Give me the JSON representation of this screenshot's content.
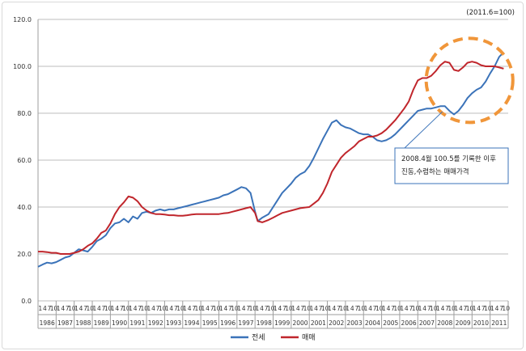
{
  "chart_data": {
    "type": "line",
    "title": "",
    "base_note": "(2011.6=100)",
    "xlabel": "",
    "ylabel": "",
    "ylim": [
      0,
      120
    ],
    "yticks": [
      "0.0",
      "20.0",
      "40.0",
      "60.0",
      "80.0",
      "100.0",
      "120.0"
    ],
    "grid": true,
    "legend_position": "bottom",
    "years": [
      "1986",
      "1987",
      "1988",
      "1989",
      "1990",
      "1991",
      "1992",
      "1993",
      "1994",
      "1995",
      "1996",
      "1997",
      "1998",
      "1999",
      "2000",
      "2001",
      "2002",
      "2003",
      "2004",
      "2005",
      "2006",
      "2007",
      "2008",
      "2009",
      "2010",
      "2011"
    ],
    "month_ticks": [
      "1",
      "4",
      "7",
      "10"
    ],
    "colors": {
      "jeonse": "#3b73b9",
      "maemae": "#c0262c",
      "highlight": "#f0963a"
    },
    "series": [
      {
        "name": "전세",
        "key": "jeonse",
        "points": [
          [
            1986.0,
            14.5
          ],
          [
            1986.25,
            15.5
          ],
          [
            1986.5,
            16.3
          ],
          [
            1986.75,
            16.0
          ],
          [
            1987.0,
            16.5
          ],
          [
            1987.25,
            17.5
          ],
          [
            1987.5,
            18.5
          ],
          [
            1987.75,
            19.0
          ],
          [
            1988.0,
            20.5
          ],
          [
            1988.25,
            22.0
          ],
          [
            1988.5,
            21.5
          ],
          [
            1988.75,
            21.0
          ],
          [
            1989.0,
            23.0
          ],
          [
            1989.25,
            25.5
          ],
          [
            1989.5,
            26.5
          ],
          [
            1989.75,
            28.0
          ],
          [
            1990.0,
            31.0
          ],
          [
            1990.25,
            33.0
          ],
          [
            1990.5,
            33.5
          ],
          [
            1990.75,
            35.0
          ],
          [
            1991.0,
            33.5
          ],
          [
            1991.25,
            36.0
          ],
          [
            1991.5,
            35.0
          ],
          [
            1991.75,
            37.5
          ],
          [
            1992.0,
            38.0
          ],
          [
            1992.25,
            37.5
          ],
          [
            1992.5,
            38.5
          ],
          [
            1992.75,
            39.0
          ],
          [
            1993.0,
            38.5
          ],
          [
            1993.25,
            39.0
          ],
          [
            1993.5,
            39.0
          ],
          [
            1993.75,
            39.5
          ],
          [
            1994.0,
            40.0
          ],
          [
            1994.25,
            40.5
          ],
          [
            1994.5,
            41.0
          ],
          [
            1994.75,
            41.5
          ],
          [
            1995.0,
            42.0
          ],
          [
            1995.25,
            42.5
          ],
          [
            1995.5,
            43.0
          ],
          [
            1995.75,
            43.5
          ],
          [
            1996.0,
            44.0
          ],
          [
            1996.25,
            45.0
          ],
          [
            1996.5,
            45.5
          ],
          [
            1996.75,
            46.5
          ],
          [
            1997.0,
            47.5
          ],
          [
            1997.25,
            48.5
          ],
          [
            1997.5,
            48.0
          ],
          [
            1997.75,
            46.0
          ],
          [
            1998.0,
            38.0
          ],
          [
            1998.15,
            34.0
          ],
          [
            1998.4,
            35.5
          ],
          [
            1998.75,
            37.0
          ],
          [
            1999.0,
            40.0
          ],
          [
            1999.25,
            43.0
          ],
          [
            1999.5,
            46.0
          ],
          [
            1999.75,
            48.0
          ],
          [
            2000.0,
            50.0
          ],
          [
            2000.25,
            52.5
          ],
          [
            2000.5,
            54.0
          ],
          [
            2000.75,
            55.0
          ],
          [
            2001.0,
            57.5
          ],
          [
            2001.25,
            61.0
          ],
          [
            2001.5,
            65.0
          ],
          [
            2001.75,
            69.0
          ],
          [
            2002.0,
            72.5
          ],
          [
            2002.25,
            76.0
          ],
          [
            2002.5,
            77.0
          ],
          [
            2002.75,
            75.0
          ],
          [
            2003.0,
            74.0
          ],
          [
            2003.25,
            73.5
          ],
          [
            2003.5,
            72.5
          ],
          [
            2003.75,
            71.5
          ],
          [
            2004.0,
            71.0
          ],
          [
            2004.25,
            71.0
          ],
          [
            2004.5,
            70.0
          ],
          [
            2004.75,
            68.5
          ],
          [
            2005.0,
            68.0
          ],
          [
            2005.25,
            68.5
          ],
          [
            2005.5,
            69.5
          ],
          [
            2005.75,
            71.0
          ],
          [
            2006.0,
            73.0
          ],
          [
            2006.25,
            75.0
          ],
          [
            2006.5,
            77.0
          ],
          [
            2006.75,
            79.0
          ],
          [
            2007.0,
            81.0
          ],
          [
            2007.25,
            81.5
          ],
          [
            2007.5,
            82.0
          ],
          [
            2007.75,
            82.0
          ],
          [
            2008.0,
            82.5
          ],
          [
            2008.25,
            83.0
          ],
          [
            2008.5,
            83.0
          ],
          [
            2008.75,
            81.0
          ],
          [
            2009.0,
            79.5
          ],
          [
            2009.25,
            81.0
          ],
          [
            2009.5,
            83.5
          ],
          [
            2009.75,
            86.5
          ],
          [
            2010.0,
            88.5
          ],
          [
            2010.25,
            90.0
          ],
          [
            2010.5,
            91.0
          ],
          [
            2010.75,
            93.5
          ],
          [
            2011.0,
            97.0
          ],
          [
            2011.25,
            100.0
          ],
          [
            2011.5,
            104.0
          ],
          [
            2011.75,
            106.0
          ]
        ]
      },
      {
        "name": "매매",
        "key": "maemae",
        "points": [
          [
            1986.0,
            21.0
          ],
          [
            1986.25,
            21.0
          ],
          [
            1986.5,
            20.8
          ],
          [
            1986.75,
            20.5
          ],
          [
            1987.0,
            20.5
          ],
          [
            1987.25,
            20.0
          ],
          [
            1987.5,
            20.0
          ],
          [
            1987.75,
            20.0
          ],
          [
            1988.0,
            20.5
          ],
          [
            1988.25,
            21.0
          ],
          [
            1988.5,
            22.0
          ],
          [
            1988.75,
            23.5
          ],
          [
            1989.0,
            24.5
          ],
          [
            1989.25,
            26.5
          ],
          [
            1989.5,
            29.0
          ],
          [
            1989.75,
            30.0
          ],
          [
            1990.0,
            33.0
          ],
          [
            1990.25,
            37.0
          ],
          [
            1990.5,
            40.0
          ],
          [
            1990.75,
            42.0
          ],
          [
            1991.0,
            44.5
          ],
          [
            1991.25,
            44.0
          ],
          [
            1991.5,
            42.5
          ],
          [
            1991.75,
            40.0
          ],
          [
            1992.0,
            38.5
          ],
          [
            1992.25,
            37.5
          ],
          [
            1992.5,
            37.0
          ],
          [
            1992.75,
            37.0
          ],
          [
            1993.0,
            36.8
          ],
          [
            1993.25,
            36.5
          ],
          [
            1993.5,
            36.5
          ],
          [
            1993.75,
            36.3
          ],
          [
            1994.0,
            36.3
          ],
          [
            1994.25,
            36.5
          ],
          [
            1994.5,
            36.8
          ],
          [
            1994.75,
            37.0
          ],
          [
            1995.0,
            37.0
          ],
          [
            1995.25,
            37.0
          ],
          [
            1995.5,
            37.0
          ],
          [
            1995.75,
            37.0
          ],
          [
            1996.0,
            37.0
          ],
          [
            1996.25,
            37.3
          ],
          [
            1996.5,
            37.5
          ],
          [
            1996.75,
            38.0
          ],
          [
            1997.0,
            38.5
          ],
          [
            1997.25,
            39.0
          ],
          [
            1997.5,
            39.5
          ],
          [
            1997.75,
            40.0
          ],
          [
            1998.0,
            37.5
          ],
          [
            1998.15,
            34.0
          ],
          [
            1998.4,
            33.5
          ],
          [
            1998.75,
            34.5
          ],
          [
            1999.0,
            35.5
          ],
          [
            1999.25,
            36.5
          ],
          [
            1999.5,
            37.5
          ],
          [
            1999.75,
            38.0
          ],
          [
            2000.0,
            38.5
          ],
          [
            2000.25,
            39.0
          ],
          [
            2000.5,
            39.5
          ],
          [
            2000.75,
            39.8
          ],
          [
            2001.0,
            40.0
          ],
          [
            2001.25,
            41.5
          ],
          [
            2001.5,
            43.0
          ],
          [
            2001.75,
            46.0
          ],
          [
            2002.0,
            50.0
          ],
          [
            2002.25,
            55.0
          ],
          [
            2002.5,
            58.0
          ],
          [
            2002.75,
            61.0
          ],
          [
            2003.0,
            63.0
          ],
          [
            2003.25,
            64.5
          ],
          [
            2003.5,
            66.0
          ],
          [
            2003.75,
            68.0
          ],
          [
            2004.0,
            69.0
          ],
          [
            2004.25,
            70.0
          ],
          [
            2004.5,
            70.0
          ],
          [
            2004.75,
            70.5
          ],
          [
            2005.0,
            71.5
          ],
          [
            2005.25,
            73.0
          ],
          [
            2005.5,
            75.0
          ],
          [
            2005.75,
            77.0
          ],
          [
            2006.0,
            79.5
          ],
          [
            2006.25,
            82.0
          ],
          [
            2006.5,
            85.0
          ],
          [
            2006.75,
            90.0
          ],
          [
            2007.0,
            94.0
          ],
          [
            2007.25,
            95.0
          ],
          [
            2007.5,
            95.0
          ],
          [
            2007.75,
            96.0
          ],
          [
            2008.0,
            98.0
          ],
          [
            2008.25,
            100.5
          ],
          [
            2008.5,
            102.0
          ],
          [
            2008.75,
            101.5
          ],
          [
            2009.0,
            98.5
          ],
          [
            2009.25,
            98.0
          ],
          [
            2009.5,
            99.5
          ],
          [
            2009.75,
            101.5
          ],
          [
            2010.0,
            102.0
          ],
          [
            2010.25,
            101.5
          ],
          [
            2010.5,
            100.5
          ],
          [
            2010.75,
            100.0
          ],
          [
            2011.0,
            100.0
          ],
          [
            2011.25,
            100.0
          ],
          [
            2011.5,
            99.5
          ],
          [
            2011.75,
            99.0
          ]
        ]
      }
    ],
    "annotation": {
      "lines": [
        "2008.4월 100.5를 기록한 이후",
        "진동,수렴하는 매매가격"
      ],
      "highlight_x_range": [
        2008.0,
        2011.9
      ],
      "highlight_y_center": 94
    }
  }
}
